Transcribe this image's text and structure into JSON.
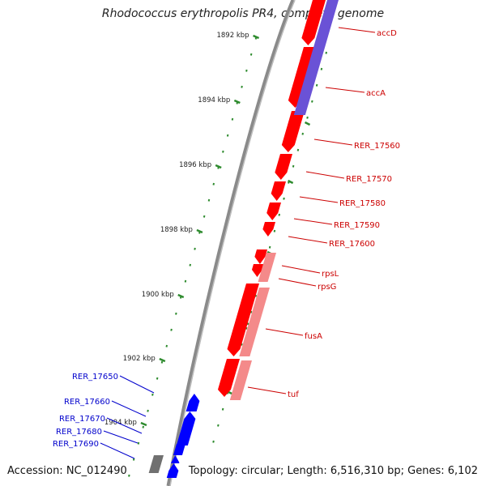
{
  "title": "Rhodococcus erythropolis PR4, complete genome",
  "accession": "Accession: NC_012490",
  "topology": "Topology: circular; Length: 6,516,310 bp; Genes: 6,102",
  "colors": {
    "backbone_dark": "#8a8a8a",
    "backbone_light": "#bdbdbd",
    "tick": "#2e8b2e",
    "gene_red": "#ff0000",
    "gene_pink": "#f48a8a",
    "gene_purple": "#6a52d6",
    "gene_blue": "#0000ff",
    "gene_gray": "#707070",
    "label_red": "#cc0000",
    "label_blue": "#0000cc"
  },
  "scale_labels": [
    "1892 kbp",
    "1894 kbp",
    "1896 kbp",
    "1898 kbp",
    "1900 kbp",
    "1902 kbp",
    "1904 kbp"
  ],
  "right_labels": [
    "accD",
    "accA",
    "RER_17560",
    "RER_17570",
    "RER_17580",
    "RER_17590",
    "RER_17600",
    "rpsL",
    "rpsG",
    "fusA",
    "tuf"
  ],
  "left_labels": [
    "RER_17650",
    "RER_17660",
    "RER_17670",
    "RER_17680",
    "RER_17690"
  ]
}
